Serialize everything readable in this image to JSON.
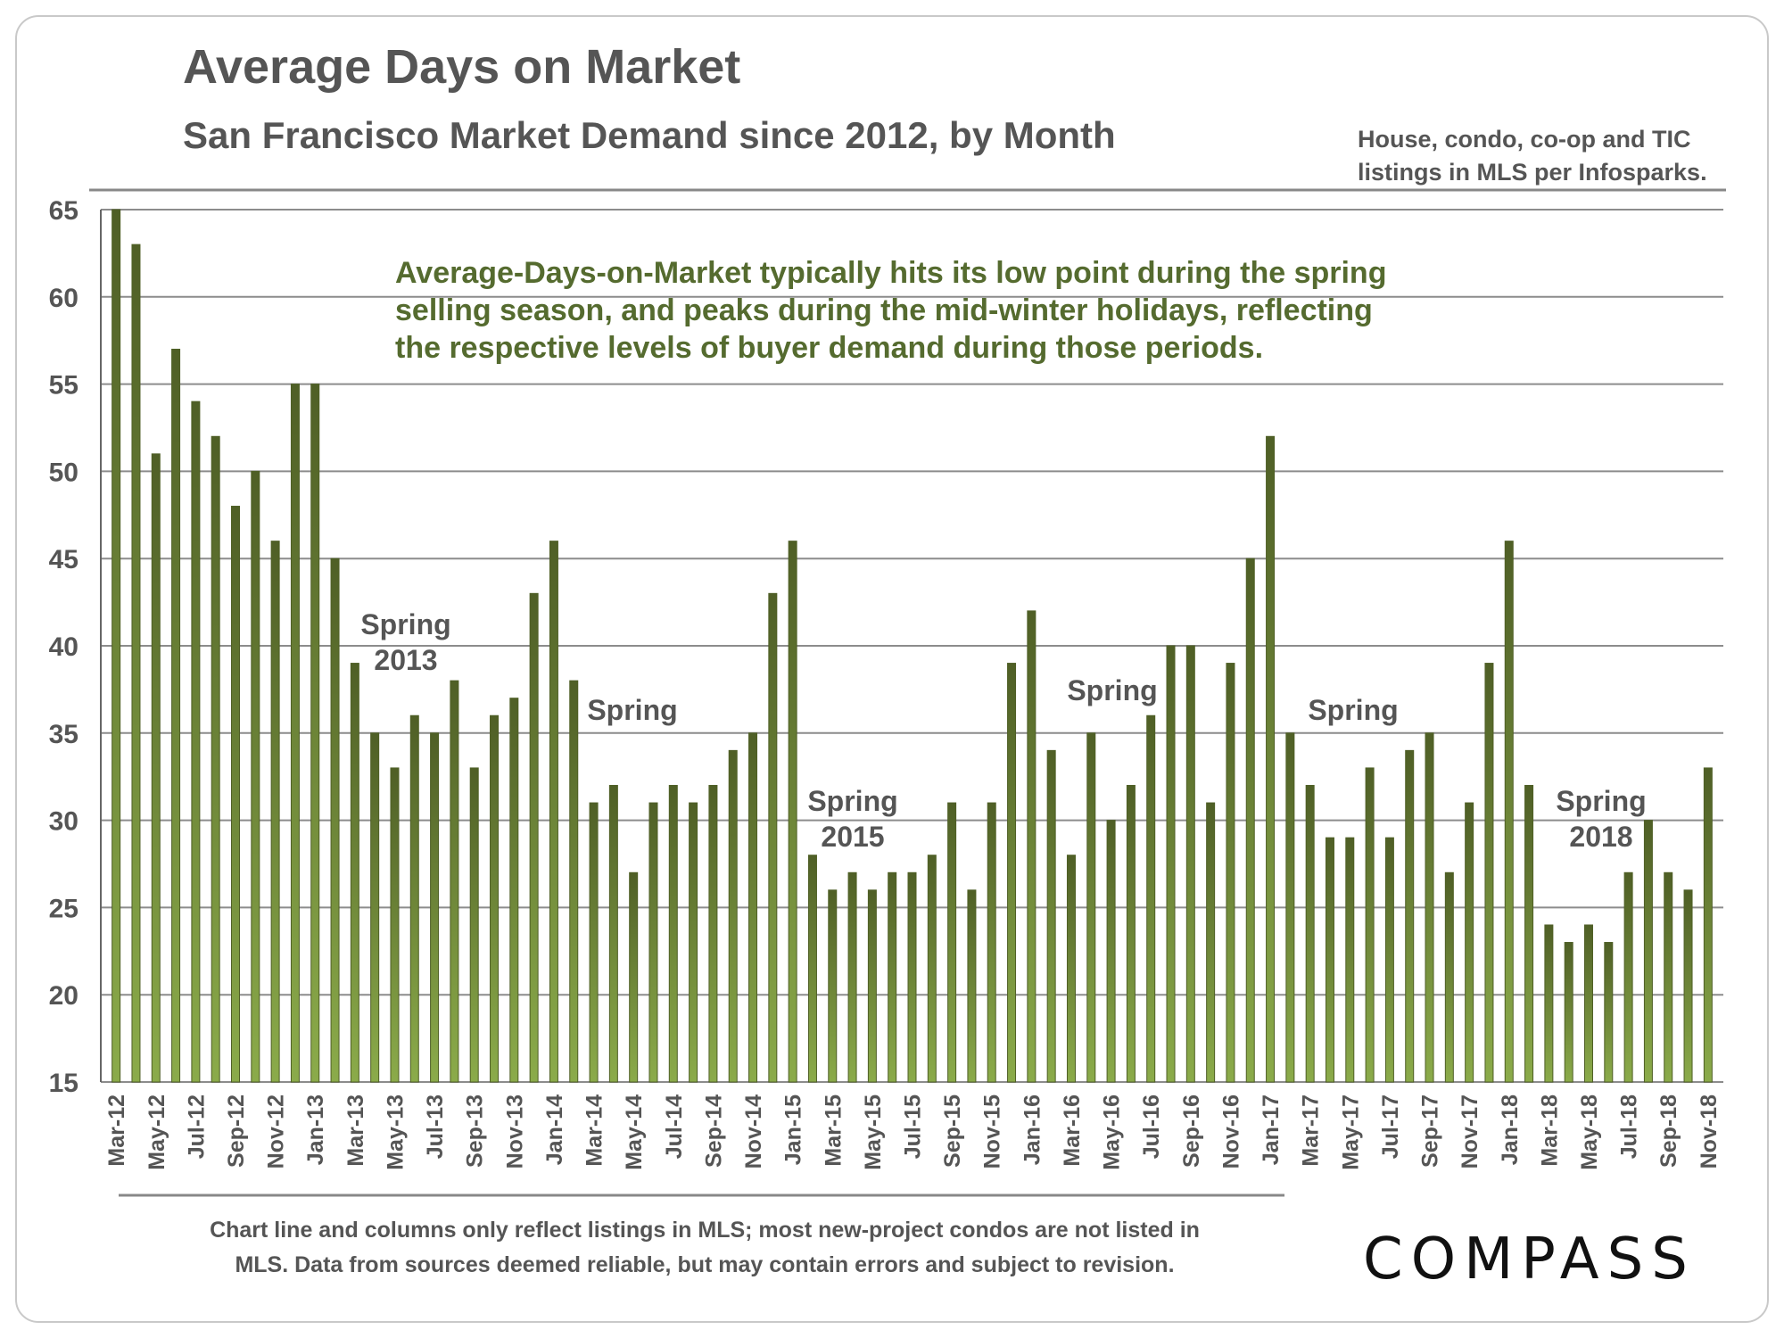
{
  "colors": {
    "bar_dark": "#4f5f26",
    "bar_light": "#8bab4a",
    "annotation": "#556b2f",
    "text": "#555555",
    "grid": "#8c8c8c"
  },
  "header": {
    "title": "Average Days on Market",
    "subtitle": "San Francisco Market Demand since 2012, by Month",
    "source_note_line1": "House, condo, co-op and TIC",
    "source_note_line2": "listings in MLS per Infosparks."
  },
  "annotation": {
    "line1": "Average-Days-on-Market typically hits its low point during the spring",
    "line2": "selling season, and peaks during the mid-winter holidays, reflecting",
    "line3": "the respective levels of buyer demand during those periods."
  },
  "spring_labels": [
    {
      "line1": "Spring",
      "line2": "2013"
    },
    {
      "line1": "Spring",
      "line2": ""
    },
    {
      "line1": "Spring",
      "line2": "2015"
    },
    {
      "line1": "Spring",
      "line2": ""
    },
    {
      "line1": "Spring",
      "line2": ""
    },
    {
      "line1": "Spring",
      "line2": "2018"
    }
  ],
  "footer": {
    "note_line1": "Chart line and columns only reflect listings in MLS; most new-project condos are not listed in",
    "note_line2": "MLS. Data from sources deemed reliable, but may contain errors and subject to revision.",
    "logo": "COMPASS"
  },
  "chart_data": {
    "type": "bar",
    "title": "Average Days on Market",
    "ylabel": "",
    "xlabel": "",
    "ylim": [
      15,
      65
    ],
    "yticks": [
      15,
      20,
      25,
      30,
      35,
      40,
      45,
      50,
      55,
      60,
      65
    ],
    "grid": true,
    "categories": [
      "Mar-12",
      "Apr-12",
      "May-12",
      "Jun-12",
      "Jul-12",
      "Aug-12",
      "Sep-12",
      "Oct-12",
      "Nov-12",
      "Dec-12",
      "Jan-13",
      "Feb-13",
      "Mar-13",
      "Apr-13",
      "May-13",
      "Jun-13",
      "Jul-13",
      "Aug-13",
      "Sep-13",
      "Oct-13",
      "Nov-13",
      "Dec-13",
      "Jan-14",
      "Feb-14",
      "Mar-14",
      "Apr-14",
      "May-14",
      "Jun-14",
      "Jul-14",
      "Aug-14",
      "Sep-14",
      "Oct-14",
      "Nov-14",
      "Dec-14",
      "Jan-15",
      "Feb-15",
      "Mar-15",
      "Apr-15",
      "May-15",
      "Jun-15",
      "Jul-15",
      "Aug-15",
      "Sep-15",
      "Oct-15",
      "Nov-15",
      "Dec-15",
      "Jan-16",
      "Feb-16",
      "Mar-16",
      "Apr-16",
      "May-16",
      "Jun-16",
      "Jul-16",
      "Aug-16",
      "Sep-16",
      "Oct-16",
      "Nov-16",
      "Dec-16",
      "Jan-17",
      "Feb-17",
      "Mar-17",
      "Apr-17",
      "May-17",
      "Jun-17",
      "Jul-17",
      "Aug-17",
      "Sep-17",
      "Oct-17",
      "Nov-17",
      "Dec-17",
      "Jan-18",
      "Feb-18",
      "Mar-18",
      "Apr-18",
      "May-18",
      "Jun-18",
      "Jul-18",
      "Aug-18",
      "Sep-18",
      "Oct-18",
      "Nov-18"
    ],
    "tick_labels": [
      "Mar-12",
      "May-12",
      "Jul-12",
      "Sep-12",
      "Nov-12",
      "Jan-13",
      "Mar-13",
      "May-13",
      "Jul-13",
      "Sep-13",
      "Nov-13",
      "Jan-14",
      "Mar-14",
      "May-14",
      "Jul-14",
      "Sep-14",
      "Nov-14",
      "Jan-15",
      "Mar-15",
      "May-15",
      "Jul-15",
      "Sep-15",
      "Nov-15",
      "Jan-16",
      "Mar-16",
      "May-16",
      "Jul-16",
      "Sep-16",
      "Nov-16",
      "Jan-17",
      "Mar-17",
      "May-17",
      "Jul-17",
      "Sep-17",
      "Nov-17",
      "Jan-18",
      "Mar-18",
      "May-18",
      "Jul-18",
      "Sep-18",
      "Nov-18"
    ],
    "series": [
      {
        "name": "Average Days on Market",
        "values": [
          65,
          63,
          51,
          57,
          54,
          52,
          48,
          50,
          46,
          55,
          55,
          45,
          39,
          35,
          33,
          36,
          35,
          38,
          33,
          36,
          37,
          43,
          46,
          38,
          31,
          32,
          27,
          31,
          32,
          31,
          32,
          34,
          35,
          43,
          46,
          28,
          26,
          27,
          26,
          27,
          27,
          28,
          31,
          26,
          31,
          39,
          42,
          34,
          28,
          35,
          30,
          32,
          36,
          40,
          40,
          31,
          39,
          45,
          52,
          35,
          32,
          29,
          29,
          33,
          29,
          34,
          35,
          27,
          31,
          39,
          46,
          32,
          24,
          23,
          24,
          23,
          27,
          30,
          27,
          26,
          33
        ]
      }
    ]
  }
}
